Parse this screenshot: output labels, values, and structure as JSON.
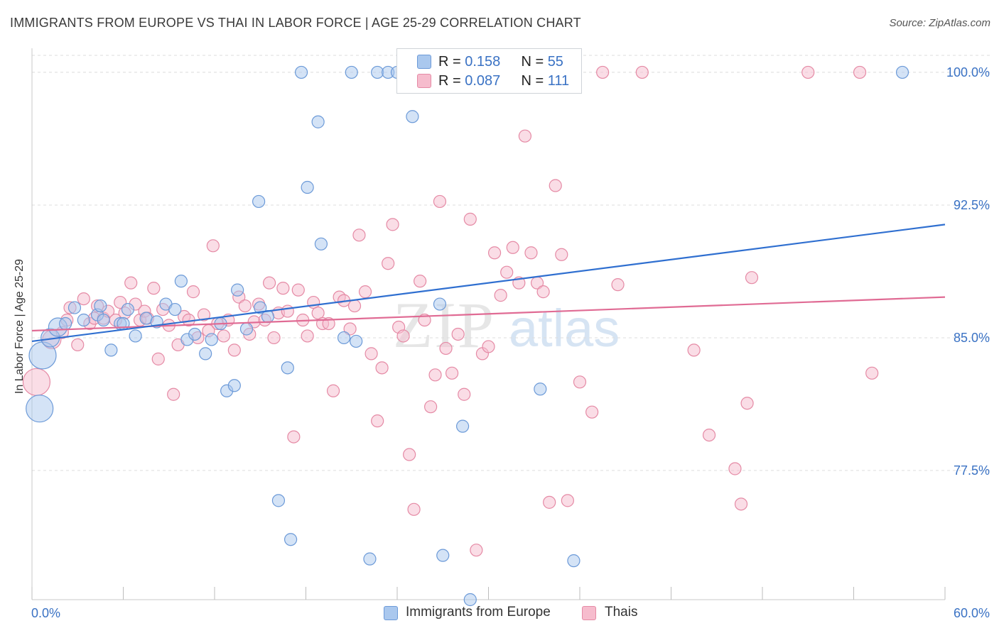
{
  "header": {
    "title": "IMMIGRANTS FROM EUROPE VS THAI IN LABOR FORCE | AGE 25-29 CORRELATION CHART",
    "source": "Source: ZipAtlas.com"
  },
  "watermark": {
    "zip": "ZIP",
    "atlas": "atlas"
  },
  "legend": {
    "rows": [
      {
        "r_label": "R = ",
        "r_value": "0.158",
        "n_label": "N = ",
        "n_value": "55"
      },
      {
        "r_label": "R = ",
        "r_value": "0.087",
        "n_label": "N = ",
        "n_value": "111"
      }
    ],
    "bottom": [
      "Immigrants from Europe",
      "Thais"
    ]
  },
  "colors": {
    "blue_fill": "#aac8ee",
    "blue_stroke": "#6c9ad8",
    "blue_line": "#2f6fd0",
    "pink_fill": "#f6bccd",
    "pink_stroke": "#e58aa5",
    "pink_line": "#e06b94",
    "tick_label": "#3a72c4",
    "grid": "#dcdcdc"
  },
  "chart_data": {
    "type": "scatter",
    "title": "IMMIGRANTS FROM EUROPE VS THAI IN LABOR FORCE | AGE 25-29 CORRELATION CHART",
    "xlabel": "",
    "ylabel": "In Labor Force | Age 25-29",
    "xlim": [
      0,
      60
    ],
    "ylim": [
      70.2,
      101.2
    ],
    "x_tick_labels": [
      "0.0%",
      "60.0%"
    ],
    "y_ticks": [
      77.5,
      85.0,
      92.5,
      100.0
    ],
    "y_tick_labels": [
      "77.5%",
      "85.0%",
      "92.5%",
      "100.0%"
    ],
    "grid": true,
    "legend_position": "top-center",
    "series": [
      {
        "name": "Immigrants from Europe",
        "color": "#aac8ee",
        "trend": {
          "x": [
            0,
            60
          ],
          "y": [
            84.8,
            91.4
          ]
        },
        "points": [
          [
            0.5,
            81.0,
            3
          ],
          [
            0.7,
            84.0,
            3
          ],
          [
            1.2,
            85.0,
            2
          ],
          [
            1.7,
            85.6,
            2
          ],
          [
            2.2,
            85.8,
            1
          ],
          [
            2.8,
            86.7,
            1
          ],
          [
            3.4,
            86.0,
            1
          ],
          [
            4.3,
            86.3,
            1
          ],
          [
            4.5,
            86.8,
            1
          ],
          [
            4.7,
            86.0,
            1
          ],
          [
            5.2,
            84.3,
            1
          ],
          [
            5.8,
            85.8,
            1
          ],
          [
            6.3,
            86.6,
            1
          ],
          [
            6.8,
            85.1,
            1
          ],
          [
            7.5,
            86.1,
            1
          ],
          [
            8.2,
            85.9,
            1
          ],
          [
            8.8,
            86.9,
            1
          ],
          [
            9.4,
            86.6,
            1
          ],
          [
            9.8,
            88.2,
            1
          ],
          [
            10.2,
            84.9,
            1
          ],
          [
            10.7,
            85.2,
            1
          ],
          [
            11.4,
            84.1,
            1
          ],
          [
            11.8,
            84.9,
            1
          ],
          [
            12.4,
            85.8,
            1
          ],
          [
            12.8,
            82.0,
            1
          ],
          [
            13.3,
            82.3,
            1
          ],
          [
            13.5,
            87.7,
            1
          ],
          [
            14.1,
            85.5,
            1
          ],
          [
            14.9,
            92.7,
            1
          ],
          [
            15.0,
            86.7,
            1
          ],
          [
            15.5,
            86.2,
            1
          ],
          [
            16.2,
            75.8,
            1
          ],
          [
            16.8,
            83.3,
            1
          ],
          [
            17.0,
            73.6,
            1
          ],
          [
            17.7,
            100.0,
            1
          ],
          [
            18.1,
            93.5,
            1
          ],
          [
            18.8,
            97.2,
            1
          ],
          [
            19.0,
            90.3,
            1
          ],
          [
            20.5,
            85.0,
            1
          ],
          [
            21.0,
            100.0,
            1
          ],
          [
            21.3,
            84.8,
            1
          ],
          [
            22.2,
            72.5,
            1
          ],
          [
            22.7,
            100.0,
            1
          ],
          [
            23.4,
            100.0,
            1
          ],
          [
            24.0,
            100.0,
            1
          ],
          [
            25.0,
            97.5,
            1
          ],
          [
            26.8,
            86.9,
            1
          ],
          [
            27.0,
            72.7,
            1
          ],
          [
            28.3,
            80.0,
            1
          ],
          [
            28.8,
            70.2,
            1
          ],
          [
            29.6,
            100.0,
            1
          ],
          [
            33.4,
            82.1,
            1
          ],
          [
            35.6,
            72.4,
            1
          ],
          [
            57.2,
            100.0,
            1
          ],
          [
            6.0,
            85.8,
            1
          ]
        ]
      },
      {
        "name": "Thais",
        "color": "#f6bccd",
        "trend": {
          "x": [
            0,
            60
          ],
          "y": [
            85.4,
            87.3
          ]
        },
        "points": [
          [
            0.3,
            82.5,
            3
          ],
          [
            1.3,
            84.9,
            2
          ],
          [
            2.0,
            85.3,
            1
          ],
          [
            2.3,
            86.0,
            1
          ],
          [
            2.5,
            86.7,
            1
          ],
          [
            3.0,
            84.6,
            1
          ],
          [
            3.4,
            87.2,
            1
          ],
          [
            3.8,
            85.8,
            1
          ],
          [
            4.1,
            86.1,
            1
          ],
          [
            4.3,
            86.8,
            1
          ],
          [
            4.7,
            86.1,
            1
          ],
          [
            5.0,
            86.5,
            1
          ],
          [
            5.5,
            86.0,
            1
          ],
          [
            5.8,
            87.0,
            1
          ],
          [
            6.1,
            86.4,
            1
          ],
          [
            6.5,
            88.1,
            1
          ],
          [
            6.8,
            86.9,
            1
          ],
          [
            7.1,
            86.0,
            1
          ],
          [
            7.4,
            86.5,
            1
          ],
          [
            7.6,
            86.1,
            1
          ],
          [
            8.0,
            87.8,
            1
          ],
          [
            8.3,
            83.8,
            1
          ],
          [
            8.6,
            86.6,
            1
          ],
          [
            9.0,
            85.7,
            1
          ],
          [
            9.3,
            81.8,
            1
          ],
          [
            9.6,
            84.6,
            1
          ],
          [
            10.0,
            86.2,
            1
          ],
          [
            10.3,
            86.0,
            1
          ],
          [
            10.6,
            87.6,
            1
          ],
          [
            10.9,
            85.0,
            1
          ],
          [
            11.3,
            86.3,
            1
          ],
          [
            11.6,
            85.4,
            1
          ],
          [
            11.9,
            90.2,
            1
          ],
          [
            12.2,
            85.8,
            1
          ],
          [
            12.6,
            85.1,
            1
          ],
          [
            12.9,
            86.0,
            1
          ],
          [
            13.3,
            84.3,
            1
          ],
          [
            13.6,
            87.3,
            1
          ],
          [
            14.0,
            86.8,
            1
          ],
          [
            14.3,
            85.2,
            1
          ],
          [
            14.6,
            85.9,
            1
          ],
          [
            14.9,
            86.9,
            1
          ],
          [
            15.3,
            86.0,
            1
          ],
          [
            15.6,
            88.1,
            1
          ],
          [
            15.9,
            85.0,
            1
          ],
          [
            16.2,
            86.4,
            1
          ],
          [
            16.5,
            87.8,
            1
          ],
          [
            16.8,
            86.5,
            1
          ],
          [
            17.2,
            79.4,
            1
          ],
          [
            17.5,
            87.7,
            1
          ],
          [
            17.8,
            86.0,
            1
          ],
          [
            18.1,
            85.1,
            1
          ],
          [
            18.5,
            87.0,
            1
          ],
          [
            18.8,
            86.4,
            1
          ],
          [
            19.1,
            85.8,
            1
          ],
          [
            19.5,
            85.8,
            1
          ],
          [
            19.8,
            82.0,
            1
          ],
          [
            20.2,
            87.3,
            1
          ],
          [
            20.5,
            87.1,
            1
          ],
          [
            20.9,
            85.5,
            1
          ],
          [
            21.2,
            86.8,
            1
          ],
          [
            21.5,
            90.8,
            1
          ],
          [
            21.9,
            87.6,
            1
          ],
          [
            22.3,
            84.1,
            1
          ],
          [
            22.7,
            80.3,
            1
          ],
          [
            23.0,
            83.3,
            1
          ],
          [
            23.4,
            89.2,
            1
          ],
          [
            23.7,
            91.4,
            1
          ],
          [
            24.1,
            85.6,
            1
          ],
          [
            24.4,
            85.1,
            1
          ],
          [
            24.8,
            78.4,
            1
          ],
          [
            25.1,
            75.3,
            1
          ],
          [
            25.5,
            88.2,
            1
          ],
          [
            25.8,
            86.0,
            1
          ],
          [
            26.2,
            81.1,
            1
          ],
          [
            26.5,
            82.9,
            1
          ],
          [
            26.8,
            92.7,
            1
          ],
          [
            27.2,
            84.4,
            1
          ],
          [
            27.6,
            83.0,
            1
          ],
          [
            28.0,
            85.2,
            1
          ],
          [
            28.4,
            81.8,
            1
          ],
          [
            28.8,
            91.7,
            1
          ],
          [
            29.2,
            73.0,
            1
          ],
          [
            29.6,
            84.1,
            1
          ],
          [
            30.0,
            84.5,
            1
          ],
          [
            30.4,
            89.8,
            1
          ],
          [
            30.8,
            87.4,
            1
          ],
          [
            31.2,
            88.7,
            1
          ],
          [
            31.6,
            90.1,
            1
          ],
          [
            32.0,
            88.1,
            1
          ],
          [
            32.4,
            96.4,
            1
          ],
          [
            32.8,
            89.8,
            1
          ],
          [
            33.2,
            88.1,
            1
          ],
          [
            33.6,
            87.6,
            1
          ],
          [
            34.0,
            75.7,
            1
          ],
          [
            34.4,
            93.6,
            1
          ],
          [
            34.8,
            89.7,
            1
          ],
          [
            35.2,
            75.8,
            1
          ],
          [
            36.0,
            82.5,
            1
          ],
          [
            36.8,
            80.8,
            1
          ],
          [
            37.5,
            100.0,
            1
          ],
          [
            38.5,
            88.0,
            1
          ],
          [
            40.1,
            100.0,
            1
          ],
          [
            43.5,
            84.3,
            1
          ],
          [
            44.5,
            79.5,
            1
          ],
          [
            46.2,
            77.6,
            1
          ],
          [
            46.6,
            75.6,
            1
          ],
          [
            47.0,
            81.3,
            1
          ],
          [
            47.3,
            88.4,
            1
          ],
          [
            51.0,
            100.0,
            1
          ],
          [
            54.4,
            100.0,
            1
          ],
          [
            55.2,
            83.0,
            1
          ]
        ]
      }
    ]
  }
}
